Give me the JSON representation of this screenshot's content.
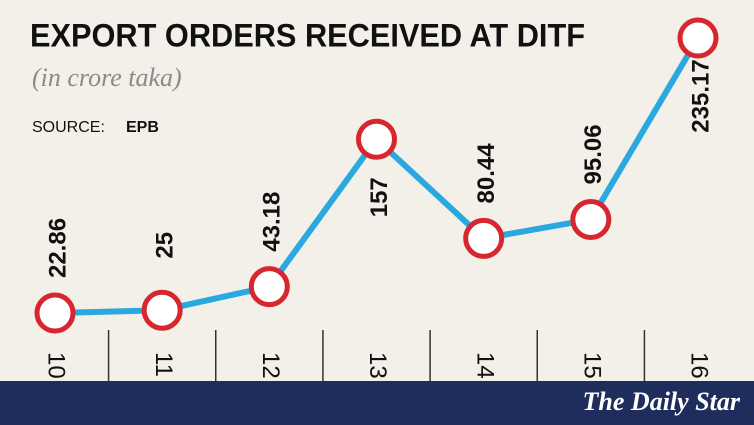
{
  "chart_data": {
    "type": "line",
    "title": "EXPORT ORDERS RECEIVED AT DITF",
    "subtitle": "(in crore taka)",
    "source_label": "SOURCE:",
    "source": "EPB",
    "categories": [
      "10",
      "11",
      "12",
      "13",
      "14",
      "15",
      "16"
    ],
    "values": [
      22.86,
      25,
      43.18,
      157,
      80.44,
      95.06,
      235.17
    ],
    "color": "#2aa9e0",
    "marker_color": "#d7262e"
  },
  "footer": {
    "logo": "The Daily Star"
  }
}
